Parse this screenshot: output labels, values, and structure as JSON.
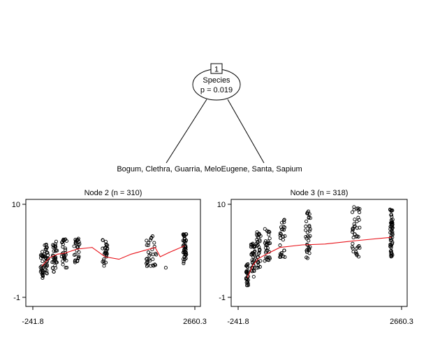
{
  "tree": {
    "root": {
      "id": "1",
      "variable": "Species",
      "pvalue": "p = 0.019"
    },
    "split_label": "Bogum, Clethra, Guarria, MeloEugene, Santa, Sapium"
  },
  "chart_data": [
    {
      "type": "scatter",
      "title": "Node 2 (n = 310)",
      "xlim": [
        -241.8,
        2660.3
      ],
      "ylim": [
        -1,
        10
      ],
      "x_ticks": [
        "-241.8",
        "2660.3"
      ],
      "y_ticks": [
        "10",
        "-1"
      ],
      "fit_line": {
        "color": "#e8141b",
        "x": [
          -80,
          60,
          200,
          320,
          550,
          820,
          1050,
          1300,
          1520,
          1950,
          2040,
          2200,
          2480
        ],
        "y": [
          2.7,
          3.7,
          4.1,
          4.2,
          4.7,
          4.9,
          3.8,
          3.5,
          4.1,
          4.9,
          3.8,
          4.3,
          5.1
        ]
      },
      "clusters": [
        {
          "x": -80,
          "n": 24,
          "ymin": 0.9,
          "ymax": 4.4,
          "spread": 30
        },
        {
          "x": 0,
          "n": 30,
          "ymin": 1.8,
          "ymax": 5.4,
          "spread": 35
        },
        {
          "x": 150,
          "n": 32,
          "ymin": 2.0,
          "ymax": 5.6,
          "spread": 45
        },
        {
          "x": 320,
          "n": 28,
          "ymin": 2.4,
          "ymax": 5.9,
          "spread": 50
        },
        {
          "x": 550,
          "n": 28,
          "ymin": 3.0,
          "ymax": 6.1,
          "spread": 55
        },
        {
          "x": 1050,
          "n": 26,
          "ymin": 2.7,
          "ymax": 5.8,
          "spread": 45
        },
        {
          "x": 1880,
          "n": 32,
          "ymin": 2.5,
          "ymax": 6.3,
          "spread": 90
        },
        {
          "x": 2140,
          "n": 1,
          "ymin": 2.5,
          "ymax": 2.5,
          "spread": 0
        },
        {
          "x": 2480,
          "n": 48,
          "ymin": 3.0,
          "ymax": 6.6,
          "spread": 30
        }
      ]
    },
    {
      "type": "scatter",
      "title": "Node 3 (n = 318)",
      "xlim": [
        -241.8,
        2660.3
      ],
      "ylim": [
        -1,
        10
      ],
      "x_ticks": [
        "-241.8",
        "2660.3"
      ],
      "y_ticks": [
        "10",
        "-1"
      ],
      "fit_line": {
        "color": "#e8141b",
        "x": [
          -80,
          20,
          120,
          260,
          500,
          900,
          1300,
          1850,
          2480
        ],
        "y": [
          1.3,
          2.8,
          3.6,
          4.1,
          4.9,
          5.2,
          5.3,
          5.7,
          6.1
        ]
      },
      "clusters": [
        {
          "x": -80,
          "n": 26,
          "ymin": 0.2,
          "ymax": 3.2,
          "spread": 20
        },
        {
          "x": 20,
          "n": 34,
          "ymin": 1.4,
          "ymax": 5.4,
          "spread": 35
        },
        {
          "x": 120,
          "n": 34,
          "ymin": 2.1,
          "ymax": 6.8,
          "spread": 40
        },
        {
          "x": 280,
          "n": 30,
          "ymin": 3.3,
          "ymax": 7.2,
          "spread": 50
        },
        {
          "x": 550,
          "n": 30,
          "ymin": 3.7,
          "ymax": 8.6,
          "spread": 50
        },
        {
          "x": 1000,
          "n": 34,
          "ymin": 3.5,
          "ymax": 9.3,
          "spread": 45
        },
        {
          "x": 1850,
          "n": 40,
          "ymin": 3.7,
          "ymax": 9.7,
          "spread": 70
        },
        {
          "x": 2480,
          "n": 60,
          "ymin": 3.8,
          "ymax": 9.8,
          "spread": 25
        }
      ]
    }
  ]
}
